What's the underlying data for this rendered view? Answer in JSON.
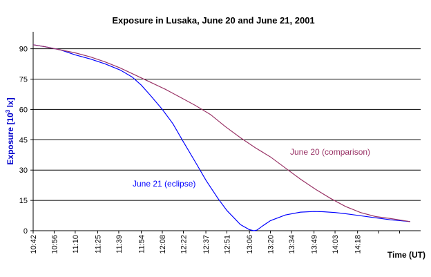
{
  "chart_data": {
    "type": "line",
    "title": "Exposure in Lusaka, June 20 and June 21, 2001",
    "ylabel_main": "Exposure [10",
    "ylabel_sup": "3",
    "ylabel_end": " lx]",
    "xlabel": "Time (UT)",
    "ylim": [
      0,
      95
    ],
    "yticks": [
      0,
      15,
      30,
      45,
      60,
      75,
      90
    ],
    "xlim_minutes": [
      "10:42",
      "15:00"
    ],
    "xticks": [
      "10:42",
      "10:56",
      "11:10",
      "11:25",
      "11:39",
      "11:54",
      "12:08",
      "12:22",
      "12:37",
      "12:51",
      "13:06",
      "13:20",
      "13:34",
      "13:49",
      "14:03",
      "14:18"
    ],
    "grid": "horizontal",
    "legend": "none",
    "series": [
      {
        "name": "June 21 (eclipse)",
        "color": "#0000ff",
        "x": [
          "10:42",
          "10:50",
          "11:00",
          "11:10",
          "11:20",
          "11:30",
          "11:40",
          "11:48",
          "11:54",
          "12:00",
          "12:08",
          "12:15",
          "12:22",
          "12:30",
          "12:37",
          "12:45",
          "12:51",
          "13:00",
          "13:06",
          "13:09",
          "13:11",
          "13:15",
          "13:20",
          "13:30",
          "13:40",
          "13:49",
          "13:55",
          "14:03",
          "14:10",
          "14:20",
          "14:30",
          "14:40",
          "14:53"
        ],
        "values": [
          92,
          91,
          89.5,
          87,
          85,
          82.5,
          79.5,
          76,
          72,
          67,
          60,
          53,
          44,
          34,
          25,
          16,
          10,
          3,
          0.5,
          0,
          0.3,
          2.5,
          5,
          7.8,
          9.2,
          9.5,
          9.4,
          9,
          8.4,
          7.4,
          6.4,
          5.4,
          4.5
        ]
      },
      {
        "name": "June 20 (comparison)",
        "color": "#993366",
        "x": [
          "10:42",
          "10:50",
          "11:00",
          "11:10",
          "11:20",
          "11:30",
          "11:40",
          "11:50",
          "12:00",
          "12:10",
          "12:20",
          "12:30",
          "12:40",
          "12:50",
          "13:00",
          "13:10",
          "13:20",
          "13:30",
          "13:40",
          "13:50",
          "14:00",
          "14:10",
          "14:20",
          "14:30",
          "14:40",
          "14:53"
        ],
        "values": [
          92,
          91,
          89.5,
          88,
          86,
          83.5,
          80.5,
          77,
          73.5,
          70,
          66,
          62,
          57.5,
          51.5,
          46,
          41,
          36.5,
          31,
          25.5,
          20.5,
          16,
          12,
          9,
          7,
          6,
          4.5
        ]
      }
    ]
  }
}
